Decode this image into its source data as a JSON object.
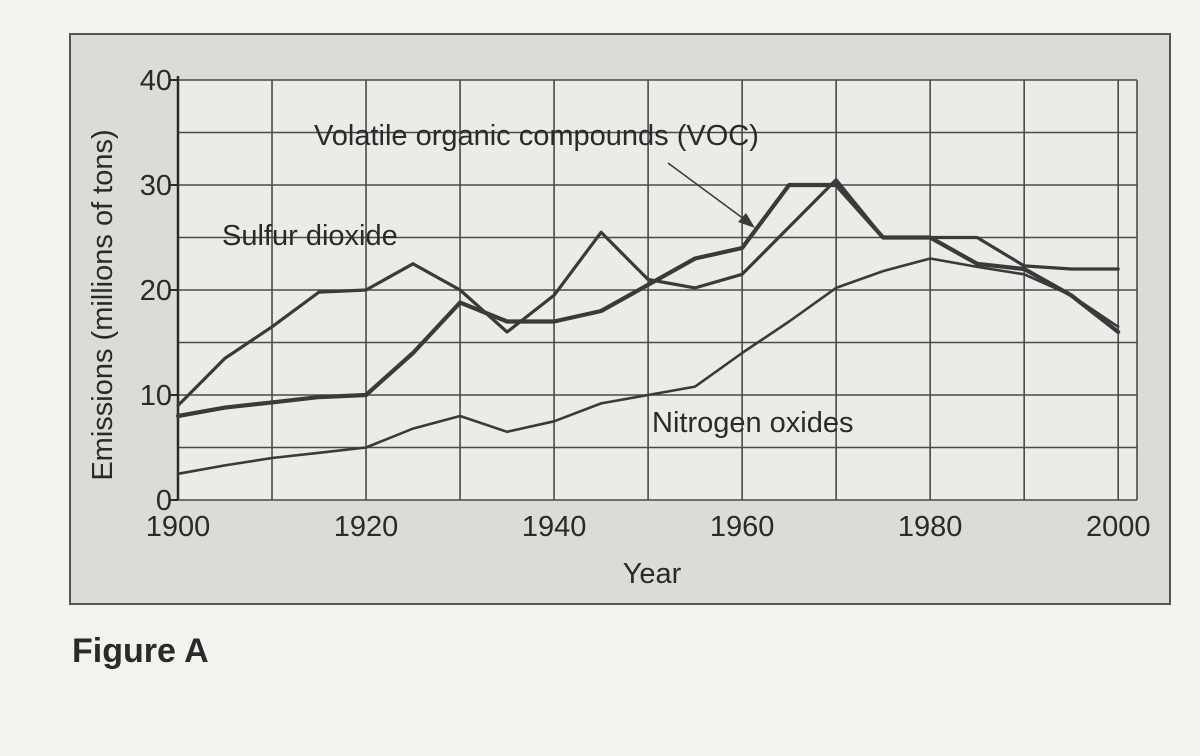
{
  "caption": "Figure A",
  "colors": {
    "panel": "#dcdbd6",
    "plot": "#ecebe7",
    "grid": "#4a4a4a",
    "line": "#3a3a3a",
    "text": "#2a2a2a"
  },
  "chart_data": {
    "type": "line",
    "title": "",
    "xlabel": "Year",
    "ylabel": "Emissions (millions of tons)",
    "xlim": [
      1900,
      2002
    ],
    "ylim": [
      0,
      40
    ],
    "grid": true,
    "x_ticks": [
      1900,
      1920,
      1940,
      1960,
      1980,
      2000
    ],
    "y_ticks": [
      0,
      10,
      20,
      30,
      40
    ],
    "series": [
      {
        "name": "Sulfur dioxide",
        "x": [
          1900,
          1905,
          1910,
          1915,
          1920,
          1925,
          1930,
          1935,
          1940,
          1945,
          1950,
          1955,
          1960,
          1965,
          1970,
          1975,
          1980,
          1985,
          1990,
          1995,
          2000
        ],
        "values": [
          9,
          13.5,
          16.5,
          19.8,
          20,
          22.5,
          20,
          16,
          19.5,
          25.5,
          21,
          20.2,
          21.5,
          26,
          30.5,
          25,
          25,
          25,
          22.3,
          22,
          22
        ]
      },
      {
        "name": "Volatile organic compounds (VOC)",
        "x": [
          1900,
          1905,
          1910,
          1915,
          1920,
          1925,
          1930,
          1935,
          1940,
          1945,
          1950,
          1955,
          1960,
          1965,
          1970,
          1975,
          1980,
          1985,
          1990,
          1995,
          2000
        ],
        "values": [
          8,
          8.8,
          9.3,
          9.8,
          10,
          14,
          18.8,
          17,
          17,
          18,
          20.5,
          23,
          24,
          30,
          30,
          25,
          25,
          22.5,
          22,
          19.5,
          16
        ]
      },
      {
        "name": "Nitrogen oxides",
        "x": [
          1900,
          1905,
          1910,
          1915,
          1920,
          1925,
          1930,
          1935,
          1940,
          1945,
          1950,
          1955,
          1960,
          1965,
          1970,
          1975,
          1980,
          1985,
          1990,
          1995,
          2000
        ],
        "values": [
          2.5,
          3.3,
          4,
          4.5,
          5,
          6.8,
          8,
          6.5,
          7.5,
          9.2,
          10,
          10.8,
          14,
          17,
          20.2,
          21.8,
          23,
          22.2,
          21.5,
          19.5,
          16.5
        ]
      }
    ],
    "annotations": [
      {
        "text": "Volatile organic compounds (VOC)",
        "series": "Volatile organic compounds (VOC)",
        "arrow_to": [
          1961,
          24.5
        ]
      },
      {
        "text": "Sulfur dioxide",
        "series": "Sulfur dioxide"
      },
      {
        "text": "Nitrogen oxides",
        "series": "Nitrogen oxides"
      }
    ]
  }
}
